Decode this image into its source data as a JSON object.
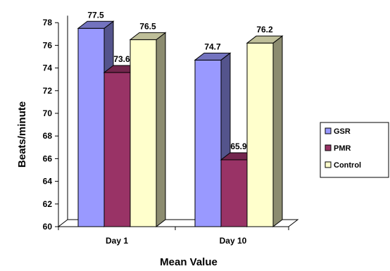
{
  "chart_data": {
    "type": "bar",
    "categories": [
      "Day 1",
      "Day 10"
    ],
    "series": [
      {
        "name": "GSR",
        "values": [
          77.5,
          74.7
        ],
        "color": "#9999FF"
      },
      {
        "name": "PMR",
        "values": [
          73.6,
          65.9
        ],
        "color": "#993366"
      },
      {
        "name": "Control",
        "values": [
          76.5,
          76.2
        ],
        "color": "#FFFFCC"
      }
    ],
    "xlabel": "Mean Value",
    "ylabel": "Beats/minute",
    "ylim": [
      60,
      78
    ],
    "yticks": [
      "60",
      "62",
      "64",
      "66",
      "68",
      "70",
      "72",
      "74",
      "76",
      "78"
    ],
    "data_labels": [
      [
        "77.5",
        "74.7"
      ],
      [
        "73.6",
        "65.9"
      ],
      [
        "76.5",
        "76.2"
      ]
    ],
    "grid": false,
    "legend_position": "right",
    "style": "3d-clustered-bar"
  }
}
